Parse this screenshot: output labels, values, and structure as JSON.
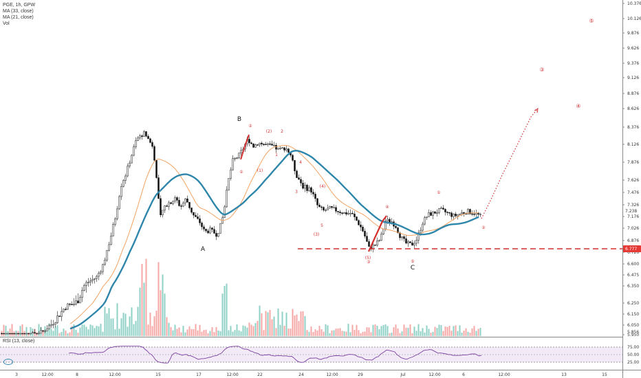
{
  "legend": {
    "title": "PGE, 1h, GPW",
    "ma1": "MA (33, close)",
    "ma2": "MA (21, close)",
    "vol": "Vol",
    "rsi": "RSI (13, close)"
  },
  "colors": {
    "up": "#26a69a",
    "down": "#ef5350",
    "ma33": "#2e86ab",
    "ma21": "#f4a261",
    "wave": "#d32f2f",
    "rsi": "#7b3fa0",
    "last_price_badge": "#e53935"
  },
  "chart_data": [
    {
      "type": "candlestick",
      "title": "PGE, 1h, GPW",
      "y_ticks": [
        "10.376",
        "10.126",
        "9.876",
        "9.626",
        "9.376",
        "9.126",
        "8.876",
        "8.626",
        "8.376",
        "8.126",
        "7.876",
        "7.626",
        "7.476",
        "7.326",
        "7.176",
        "7.026",
        "6.876",
        "6.726",
        "6.600",
        "6.475",
        "6.350",
        "6.250",
        "6.150",
        "6.050",
        "5.950",
        "5.856"
      ],
      "x_ticks": [
        "3",
        "12:00",
        "8",
        "12:00",
        "15",
        "17",
        "12:00",
        "22",
        "24",
        "12:00",
        "29",
        "Jul",
        "12:00",
        "6",
        "12:00",
        "13",
        "15"
      ],
      "ylim": [
        5.85,
        10.4
      ],
      "current_price": "7.238",
      "support_level": "6.777",
      "series": [
        {
          "name": "MA (33, close)",
          "type": "line"
        },
        {
          "name": "MA (21, close)",
          "type": "line"
        }
      ],
      "wave_labels": [
        "B",
        "A",
        "C",
        "(1)",
        "(2)",
        "2",
        "1",
        "4",
        "3",
        "(4)",
        "5",
        "(3)",
        "(5)",
        "②",
        "③",
        "④",
        "⑤",
        "①",
        "④",
        "⑤",
        "①",
        "②",
        "③",
        "④",
        "⑤"
      ],
      "projection_targets": [
        "①",
        "②",
        "③",
        "④",
        "⑤"
      ]
    },
    {
      "type": "bar",
      "name": "Vol",
      "note": "volume histogram (relative heights)"
    },
    {
      "type": "line",
      "name": "RSI (13, close)",
      "y_ticks": [
        "75.00",
        "50.00",
        "25.00"
      ],
      "ylim": [
        20,
        80
      ]
    }
  ]
}
